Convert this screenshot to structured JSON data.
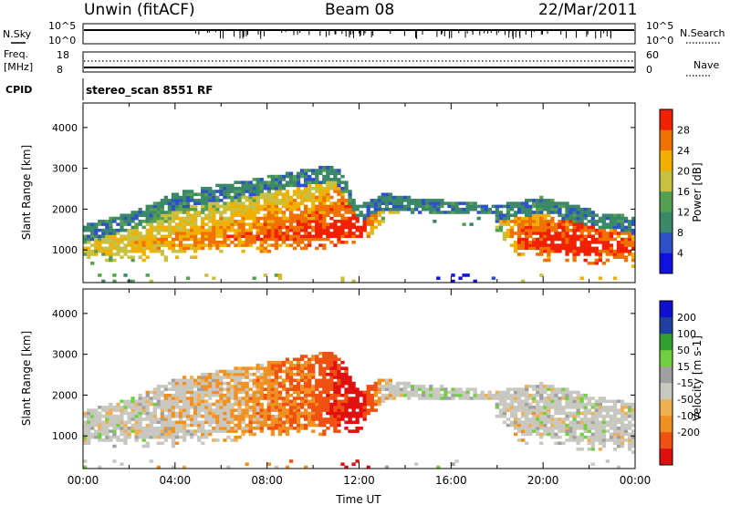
{
  "header": {
    "station": "Unwin (fitACF)",
    "beam": "Beam 08",
    "date": "22/Mar/2011"
  },
  "status_panels": {
    "nsky_label": "N.Sky",
    "nsky_ticks": [
      "10^5",
      "10^0"
    ],
    "nsearch_label": "N.Search",
    "nsearch_ticks": [
      "10^5",
      "10^0"
    ],
    "freq_label": "Freq.",
    "freq_unit": "[MHz]",
    "freq_ticks": [
      "18",
      "8"
    ],
    "nave_label": "Nave",
    "nave_ticks": [
      "60",
      "0"
    ],
    "cpid_label": "CPID",
    "cpid_text": "stereo_scan 8551 RF"
  },
  "colors": {
    "power": [
      "#1010e0",
      "#2e50c8",
      "#3a8868",
      "#55a050",
      "#c8c040",
      "#f0b000",
      "#f07000",
      "#f02000"
    ],
    "velocity": [
      "#e01010",
      "#f05010",
      "#f09020",
      "#f0b050",
      "#c8c8c0",
      "#a0a0a0",
      "#70d040",
      "#30a030",
      "#2040a0",
      "#1010d0"
    ]
  },
  "chart_data": [
    {
      "type": "heatmap",
      "name": "power",
      "ylabel": "Slant Range [km]",
      "xlabel": "",
      "yticks": [
        1000,
        2000,
        3000,
        4000
      ],
      "ylim": [
        200,
        4600
      ],
      "xlim": [
        0,
        24
      ],
      "colorbar": {
        "label": "Power [dB]",
        "ticks": [
          "4",
          "8",
          "12",
          "16",
          "20",
          "24",
          "28"
        ],
        "range": [
          0,
          30
        ]
      },
      "x_hours": [
        0,
        2,
        4,
        6,
        8,
        10,
        11,
        12,
        13,
        14,
        16,
        18,
        19,
        20,
        22,
        24
      ],
      "echo_center_km": [
        1100,
        1150,
        1200,
        1300,
        1400,
        1450,
        1500,
        1550,
        2100,
        2200,
        2100,
        1900,
        1300,
        1200,
        1100,
        1050
      ],
      "echo_top_km": [
        1600,
        1900,
        2400,
        2600,
        2800,
        3000,
        3100,
        2100,
        2400,
        2300,
        2200,
        2100,
        2200,
        2300,
        2000,
        1800
      ],
      "peak_power_db": [
        18,
        20,
        22,
        24,
        26,
        28,
        30,
        30,
        20,
        16,
        14,
        18,
        26,
        28,
        30,
        26
      ]
    },
    {
      "type": "heatmap",
      "name": "velocity",
      "ylabel": "Slant Range [km]",
      "xlabel": "Time UT",
      "xticks": [
        "00:00",
        "04:00",
        "08:00",
        "12:00",
        "16:00",
        "20:00",
        "00:00"
      ],
      "yticks": [
        1000,
        2000,
        3000,
        4000
      ],
      "ylim": [
        200,
        4600
      ],
      "xlim": [
        0,
        24
      ],
      "colorbar": {
        "label": "Velocity [m s-1]",
        "ticks": [
          "200",
          "100",
          "50",
          "15",
          "-15",
          "-50",
          "-100",
          "-200"
        ],
        "range": [
          -250,
          250
        ]
      },
      "x_hours": [
        0,
        2,
        4,
        6,
        8,
        10,
        11,
        12,
        13,
        14,
        16,
        18,
        19,
        20,
        22,
        24
      ],
      "mean_velocity_ms": [
        0,
        0,
        -20,
        -30,
        -60,
        -80,
        -150,
        -200,
        -20,
        10,
        20,
        0,
        -10,
        0,
        0,
        0
      ]
    }
  ]
}
